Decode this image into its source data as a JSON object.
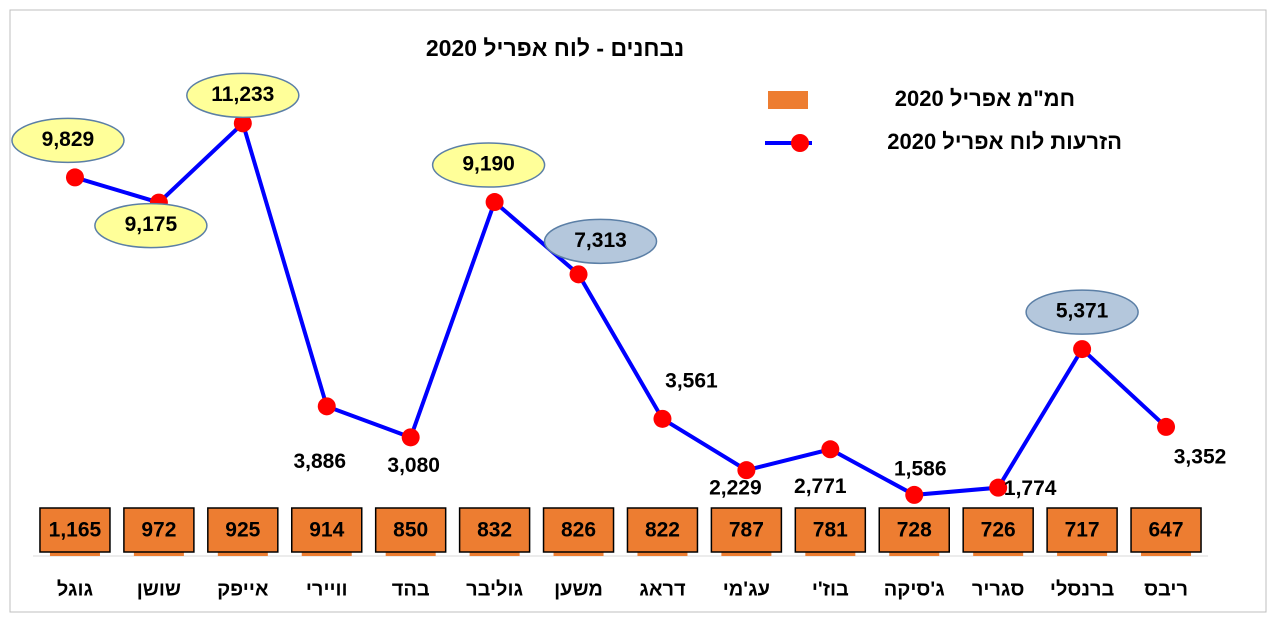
{
  "chart_data": {
    "type": "bar+line",
    "title": "נבחנים - לוח אפריל 2020",
    "categories": [
      "גוגל",
      "שושן",
      "אייפק",
      "וויירי",
      "בהד",
      "גוליבר",
      "משען",
      "דראג",
      "עג'מי",
      "בוז'י",
      "ג'סיקה",
      "סגריר",
      "ברנסלי",
      "ריבס"
    ],
    "series": [
      {
        "name": "חמ\"מ אפריל 2020",
        "type": "bar",
        "color": "#ED7D31",
        "values": [
          1165,
          972,
          925,
          914,
          850,
          832,
          826,
          822,
          787,
          781,
          728,
          726,
          717,
          647
        ],
        "value_labels": [
          "1,165",
          "972",
          "925",
          "914",
          "850",
          "832",
          "826",
          "822",
          "787",
          "781",
          "728",
          "726",
          "717",
          "647"
        ]
      },
      {
        "name": "הזרעות לוח אפריל 2020",
        "type": "line",
        "color": "#0000FF",
        "marker_color": "#FF0000",
        "values": [
          9829,
          9175,
          11233,
          3886,
          3080,
          9190,
          7313,
          3561,
          2229,
          2771,
          1586,
          1774,
          5371,
          3352
        ],
        "value_labels": [
          "9,829",
          "9,175",
          "11,233",
          "3,886",
          "3,080",
          "9,190",
          "7,313",
          "3,561",
          "2,229",
          "2,771",
          "1,586",
          "1,774",
          "5,371",
          "3,352"
        ],
        "label_colors": [
          "#FFFF99",
          "#FFFF99",
          "#FFFF99",
          null,
          null,
          "#FFFF99",
          "#B4C7DC",
          null,
          null,
          null,
          null,
          null,
          "#B4C7DC",
          null
        ]
      }
    ],
    "ylim": [
      0,
      13500
    ],
    "legend": "top-right"
  }
}
